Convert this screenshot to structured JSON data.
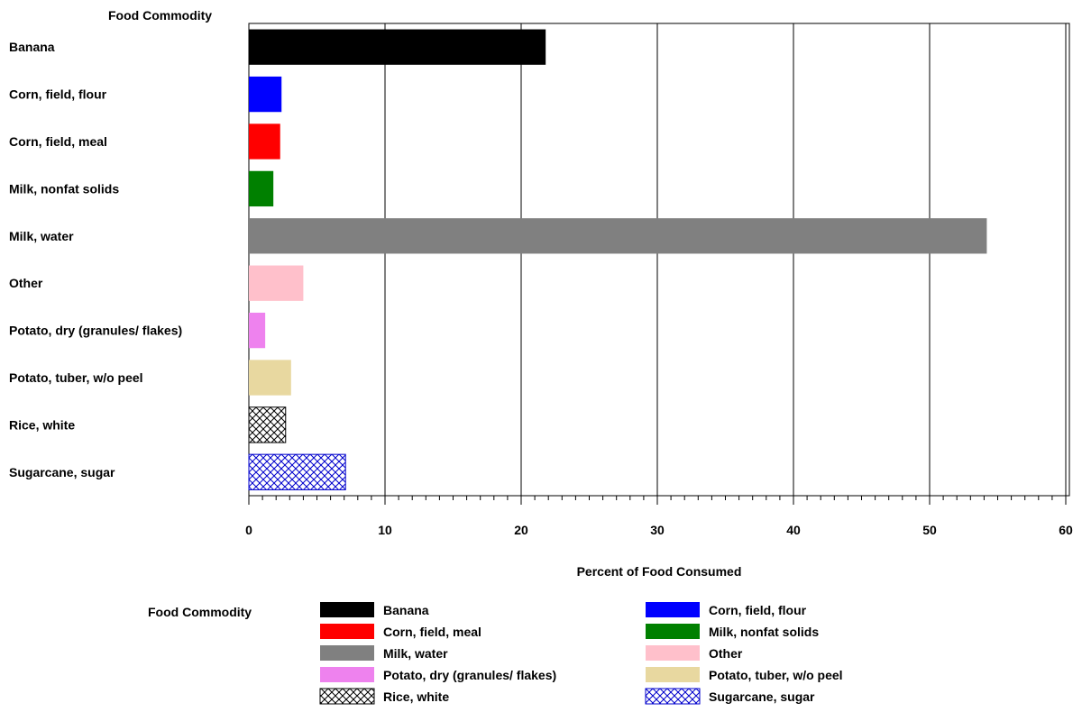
{
  "chart_data": {
    "type": "bar",
    "orientation": "horizontal",
    "category_axis_title": "Food Commodity",
    "xlabel": "Percent of Food Consumed",
    "xlim": [
      0,
      60
    ],
    "xticks": [
      0,
      10,
      20,
      30,
      40,
      50,
      60
    ],
    "grid": true,
    "categories": [
      "Banana",
      "Corn, field, flour",
      "Corn, field, meal",
      "Milk, nonfat solids",
      "Milk, water",
      "Other",
      "Potato, dry (granules/ flakes)",
      "Potato, tuber, w/o peel",
      "Rice, white",
      "Sugarcane, sugar"
    ],
    "values": [
      21.8,
      2.4,
      2.3,
      1.8,
      54.2,
      4.0,
      1.2,
      3.1,
      2.7,
      7.1
    ],
    "colors": [
      "#000000",
      "#0000ff",
      "#ff0000",
      "#008000",
      "#808080",
      "#ffc0cb",
      "#ee82ee",
      "#e8d8a0",
      "hatch-black",
      "hatch-blue"
    ],
    "legend": {
      "title": "Food Commodity",
      "placement": "bottom",
      "entries": [
        "Banana",
        "Corn, field, flour",
        "Corn, field, meal",
        "Milk, nonfat solids",
        "Milk, water",
        "Other",
        "Potato, dry (granules/ flakes)",
        "Potato, tuber, w/o peel",
        "Rice, white",
        "Sugarcane, sugar"
      ]
    }
  }
}
